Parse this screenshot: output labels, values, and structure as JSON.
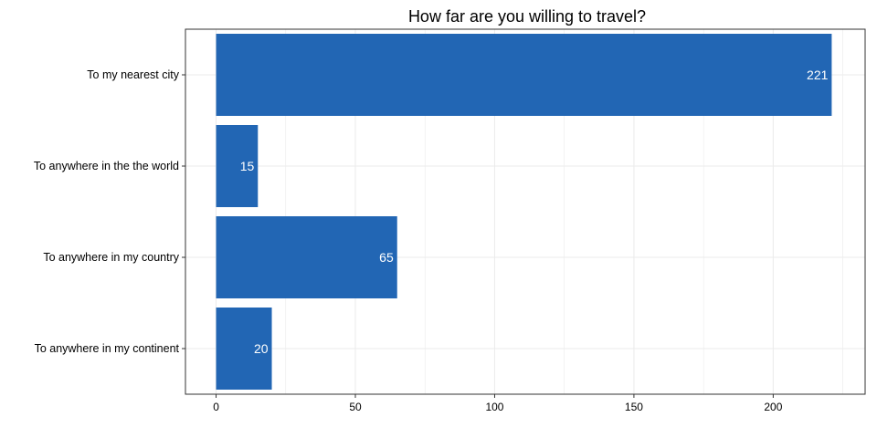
{
  "chart_data": {
    "type": "bar",
    "orientation": "horizontal",
    "title": "How far are you willing to travel?",
    "xlabel": "",
    "ylabel": "",
    "categories": [
      "To my nearest city",
      "To anywhere in the the world",
      "To anywhere in my country",
      "To anywhere in my continent"
    ],
    "values": [
      221,
      15,
      65,
      20
    ],
    "value_labels": [
      "221",
      "15",
      "65",
      "20"
    ],
    "xlim": [
      -11,
      233
    ],
    "x_ticks": [
      0,
      50,
      100,
      150,
      200
    ],
    "x_tick_labels": [
      "0",
      "50",
      "100",
      "150",
      "200"
    ],
    "grid": true,
    "legend": "none",
    "bar_color": "#2266b4",
    "grid_color": "#ebebeb",
    "panel_border_color": "#333333"
  }
}
